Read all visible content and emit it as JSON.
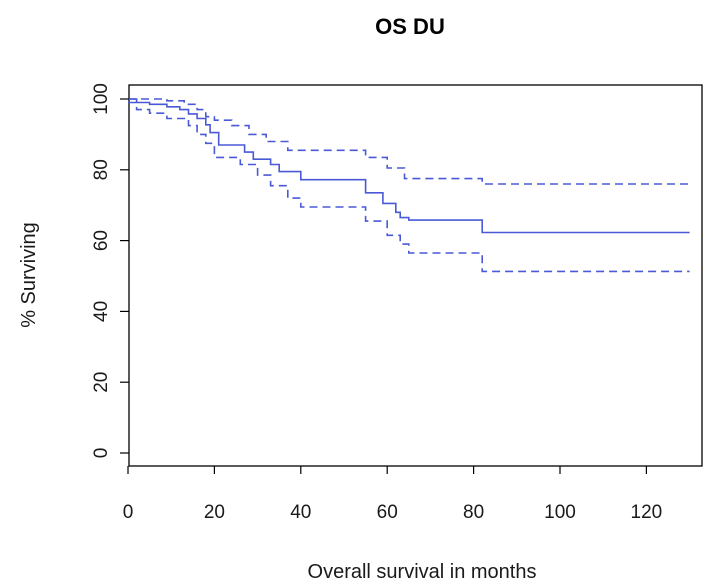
{
  "chart_data": {
    "type": "line",
    "title": "OS DU",
    "xlabel": "Overall survival in months",
    "ylabel": "% Surviving",
    "xlim": [
      0,
      132
    ],
    "ylim": [
      -3,
      103
    ],
    "x_ticks": [
      0,
      20,
      40,
      60,
      80,
      100,
      120
    ],
    "y_ticks": [
      0,
      20,
      40,
      60,
      80,
      100
    ],
    "grid": false,
    "legend": "none",
    "line_color": "#4a5ad6",
    "series": [
      {
        "style": "solid",
        "x": [
          0,
          2,
          5,
          9,
          12,
          14,
          16,
          18,
          19,
          21,
          27,
          29,
          33,
          35,
          40,
          55,
          59,
          62,
          63,
          65,
          82,
          130
        ],
        "y": [
          100,
          99,
          98.5,
          97.8,
          97,
          95.8,
          94.5,
          92.7,
          90.5,
          87,
          85,
          83,
          81.5,
          79.5,
          77.2,
          73.5,
          70.5,
          68,
          66.5,
          65.8,
          62.3,
          62.3
        ]
      },
      {
        "style": "dashed",
        "x": [
          0,
          4,
          9,
          13,
          16,
          18,
          20,
          24,
          28,
          32,
          37,
          48,
          55,
          60,
          64,
          82,
          130
        ],
        "y": [
          100,
          100,
          99.5,
          98.5,
          97,
          95,
          94,
          92.5,
          90,
          88,
          85.5,
          85.5,
          83.5,
          80.5,
          77.5,
          76,
          76
        ]
      },
      {
        "style": "dashed",
        "x": [
          0,
          2,
          5,
          9,
          14,
          16,
          18,
          20,
          26,
          30,
          33,
          37,
          40,
          55,
          60,
          63,
          65,
          82,
          130
        ],
        "y": [
          99,
          97,
          96,
          94.5,
          92.5,
          90,
          87.5,
          83.5,
          81.5,
          78.5,
          75.5,
          72,
          69.5,
          65.5,
          61.5,
          59,
          56.5,
          51.3,
          51.3
        ]
      }
    ]
  }
}
